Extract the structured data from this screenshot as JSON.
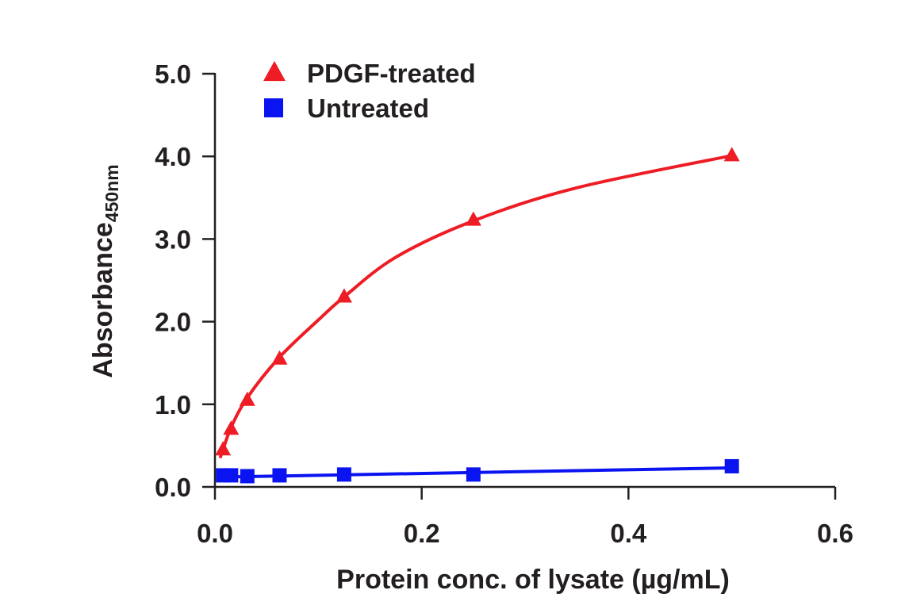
{
  "chart_data": {
    "type": "scatter",
    "title": "",
    "xlabel": "Protein conc. of lysate (µg/mL)",
    "ylabel": {
      "main": "Absorbance",
      "subscript": "450nm"
    },
    "xlim": [
      0,
      0.6
    ],
    "ylim": [
      0,
      5
    ],
    "x_ticks": [
      0,
      0.2,
      0.4,
      0.6
    ],
    "x_tick_labels": [
      "0.0",
      "0.2",
      "0.4",
      "0.6"
    ],
    "y_ticks": [
      0,
      1,
      2,
      3,
      4,
      5
    ],
    "y_tick_labels": [
      "0.0",
      "1.0",
      "2.0",
      "3.0",
      "4.0",
      "5.0"
    ],
    "grid": false,
    "legend_position": "top-left",
    "series": [
      {
        "name": "PDGF-treated",
        "color": "#ee1c25",
        "marker": "triangle",
        "x": [
          0.0078,
          0.0156,
          0.0313,
          0.0625,
          0.125,
          0.25,
          0.5
        ],
        "y": [
          0.45,
          0.7,
          1.05,
          1.55,
          2.3,
          3.23,
          4.01
        ],
        "fit": "saturation",
        "fit_curve": {
          "x": [
            0.005,
            0.0078,
            0.0156,
            0.0313,
            0.0625,
            0.1,
            0.125,
            0.175,
            0.25,
            0.35,
            0.5
          ],
          "y": [
            0.35,
            0.45,
            0.72,
            1.08,
            1.57,
            2.02,
            2.3,
            2.78,
            3.22,
            3.62,
            4.01
          ]
        }
      },
      {
        "name": "Untreated",
        "color": "#0a14f0",
        "marker": "square",
        "x": [
          0.0078,
          0.0156,
          0.0313,
          0.0625,
          0.125,
          0.25,
          0.5
        ],
        "y": [
          0.14,
          0.14,
          0.13,
          0.14,
          0.15,
          0.15,
          0.25
        ],
        "fit": "linear",
        "fit_curve": {
          "x": [
            0.0078,
            0.5
          ],
          "y": [
            0.12,
            0.23
          ]
        }
      }
    ]
  }
}
